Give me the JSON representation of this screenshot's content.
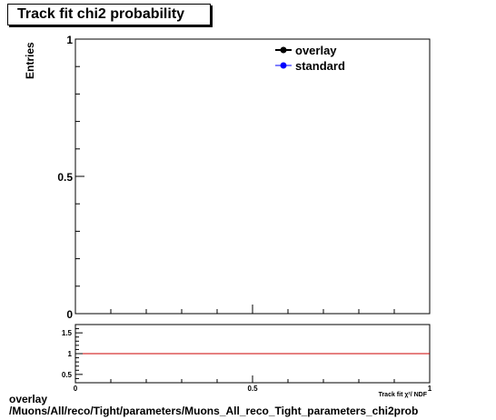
{
  "title": "Track fit chi2 probability",
  "footer": {
    "line1": "overlay",
    "line2": "/Muons/All/reco/Tight/parameters/Muons_All_reco_Tight_parameters_chi2prob"
  },
  "chart_data": [
    {
      "type": "line",
      "title": "Track fit chi2 probability",
      "ylabel": "Entries",
      "xlabel": "Track fit χ²/ NDF",
      "xlim": [
        0,
        1
      ],
      "ylim": [
        0,
        1
      ],
      "x_ticks": [
        "0",
        "0.5",
        "1"
      ],
      "y_ticks": [
        "0",
        "0.5",
        "1"
      ],
      "legend_position": "top-right",
      "series": [
        {
          "name": "overlay",
          "color": "#000000",
          "values": []
        },
        {
          "name": "standard",
          "color": "#0000ff",
          "values": []
        }
      ]
    },
    {
      "type": "line",
      "xlim": [
        0,
        1
      ],
      "ylim": [
        0.3,
        1.7
      ],
      "x_ticks": [
        "0",
        "0.5",
        "1"
      ],
      "y_ticks": [
        "0.5",
        "1",
        "1.5"
      ],
      "reference_line": {
        "y": 1,
        "color": "#cc0000"
      }
    }
  ]
}
